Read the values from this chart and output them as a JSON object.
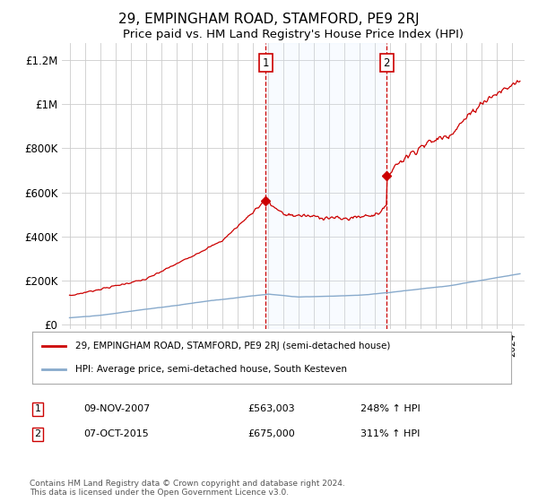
{
  "title": "29, EMPINGHAM ROAD, STAMFORD, PE9 2RJ",
  "subtitle": "Price paid vs. HM Land Registry's House Price Index (HPI)",
  "legend_line1": "29, EMPINGHAM ROAD, STAMFORD, PE9 2RJ (semi-detached house)",
  "legend_line2": "HPI: Average price, semi-detached house, South Kesteven",
  "annotation1_date": "09-NOV-2007",
  "annotation1_price": "£563,003",
  "annotation1_hpi": "248% ↑ HPI",
  "annotation2_date": "07-OCT-2015",
  "annotation2_price": "£675,000",
  "annotation2_hpi": "311% ↑ HPI",
  "vline1_x": 2007.85,
  "vline2_x": 2015.77,
  "sale1_y": 563003,
  "sale2_y": 675000,
  "ylabel_ticks": [
    "£0",
    "£200K",
    "£400K",
    "£600K",
    "£800K",
    "£1M",
    "£1.2M"
  ],
  "ytick_vals": [
    0,
    200000,
    400000,
    600000,
    800000,
    1000000,
    1200000
  ],
  "xlim": [
    1994.5,
    2024.8
  ],
  "ylim": [
    -20000,
    1280000
  ],
  "background_color": "#ffffff",
  "line_color_red": "#cc0000",
  "line_color_blue": "#88aacc",
  "vline_color": "#cc0000",
  "shade_color": "#ddeeff",
  "footer": "Contains HM Land Registry data © Crown copyright and database right 2024.\nThis data is licensed under the Open Government Licence v3.0."
}
